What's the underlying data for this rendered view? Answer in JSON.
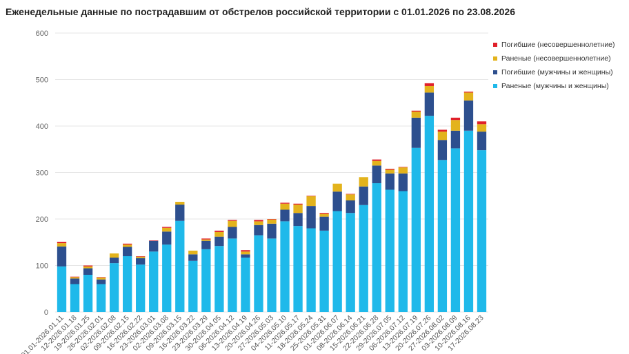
{
  "chart_data": {
    "type": "bar",
    "stacked": true,
    "title": "Еженедельные данные по пострадавшим от обстрелов российской территории с 01.01.2026 по 23.08.2026",
    "xlabel": "",
    "ylabel": "",
    "ylim": [
      0,
      600
    ],
    "yticks": [
      0,
      100,
      200,
      300,
      400,
      500,
      600
    ],
    "grid": true,
    "legend_position": "top-right",
    "categories": [
      "01.01-2026.01.11",
      "12-2026.01.18",
      "19-2026.01.25",
      "26-2026.02.01",
      "02-2026.02.08",
      "09-2026.02.15",
      "16-2026.02.22",
      "23-2026.03.01",
      "02-2026.03.08",
      "09-2026.03.15",
      "16-2026.03.22",
      "23-2026.03.29",
      "30-2026.04.05",
      "06-2026.04.12",
      "13-2026.04.19",
      "20-2026.04.26",
      "27-2026.05.03",
      "04-2026.05.10",
      "11-2026.05.17",
      "18-2026.05.24",
      "25-2026.05.31",
      "01-2026.06.07",
      "08-2026.06.14",
      "15-2026.06.21",
      "22-2026.06.28",
      "29-2026.07.05",
      "06-2026.07.12",
      "13-2026.07.19",
      "20-2026.07.26",
      "27-2026.08.02",
      "03-2026.08.09",
      "10-2026.08.16",
      "17-2026.08.23"
    ],
    "series": [
      {
        "name": "Раненые (мужчины и женщины)",
        "color": "#1fb9ea",
        "values": [
          98,
          60,
          80,
          60,
          105,
          120,
          102,
          130,
          145,
          196,
          110,
          135,
          142,
          158,
          117,
          165,
          158,
          195,
          185,
          180,
          175,
          217,
          213,
          230,
          277,
          263,
          260,
          353,
          422,
          327,
          352,
          390,
          348
        ]
      },
      {
        "name": "Погибшие (мужчины и женщины)",
        "color": "#2d4f8e",
        "values": [
          43,
          12,
          14,
          10,
          12,
          20,
          14,
          23,
          28,
          35,
          14,
          18,
          20,
          25,
          7,
          22,
          32,
          25,
          28,
          48,
          30,
          42,
          27,
          40,
          38,
          35,
          38,
          65,
          50,
          43,
          38,
          65,
          40
        ]
      },
      {
        "name": "Раненые (несовершеннолетние)",
        "color": "#e3b31c",
        "values": [
          7,
          3,
          4,
          4,
          9,
          5,
          3,
          0,
          8,
          6,
          8,
          3,
          10,
          13,
          6,
          8,
          9,
          13,
          18,
          21,
          6,
          17,
          13,
          20,
          10,
          8,
          13,
          13,
          14,
          18,
          23,
          17,
          16
        ]
      },
      {
        "name": "Погибшие (несовершеннолетние)",
        "color": "#e0202a",
        "values": [
          3,
          1,
          2,
          1,
          0,
          2,
          1,
          1,
          2,
          0,
          0,
          2,
          3,
          2,
          3,
          3,
          1,
          2,
          2,
          1,
          2,
          0,
          1,
          0,
          3,
          2,
          1,
          2,
          6,
          4,
          5,
          2,
          6
        ]
      }
    ],
    "legend_order": [
      3,
      2,
      1,
      0
    ]
  }
}
